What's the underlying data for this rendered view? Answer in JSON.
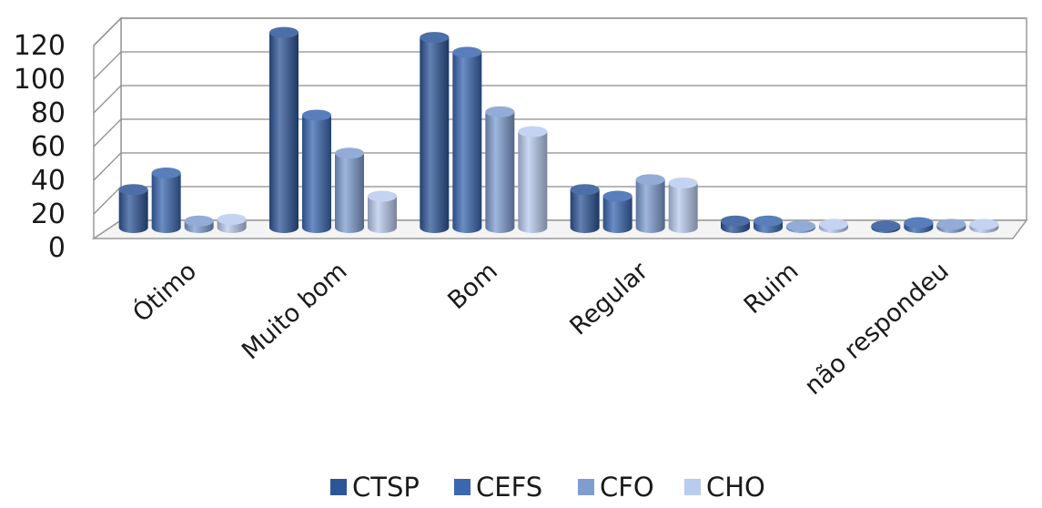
{
  "chart_data": {
    "type": "bar",
    "title": "",
    "xlabel": "",
    "ylabel": "",
    "ylim": [
      0,
      120
    ],
    "yticks": [
      0,
      20,
      40,
      60,
      80,
      100,
      120
    ],
    "grid": true,
    "legend_position": "bottom",
    "style": "3d-cylinder",
    "categories": [
      "Ótimo",
      "Muito bom",
      "Bom",
      "Regular",
      "Ruim",
      "não respondeu"
    ],
    "series": [
      {
        "name": "CTSP",
        "color": "#2e5597",
        "values": [
          23,
          118,
          115,
          23,
          4,
          1
        ]
      },
      {
        "name": "CEFS",
        "color": "#3a67b0",
        "values": [
          33,
          68,
          106,
          19,
          4,
          3
        ]
      },
      {
        "name": "CFO",
        "color": "#7f9dd0",
        "values": [
          4,
          45,
          70,
          29,
          1,
          2
        ]
      },
      {
        "name": "CHO",
        "color": "#b9cbee",
        "values": [
          5,
          19,
          58,
          27,
          2,
          2
        ]
      }
    ]
  }
}
